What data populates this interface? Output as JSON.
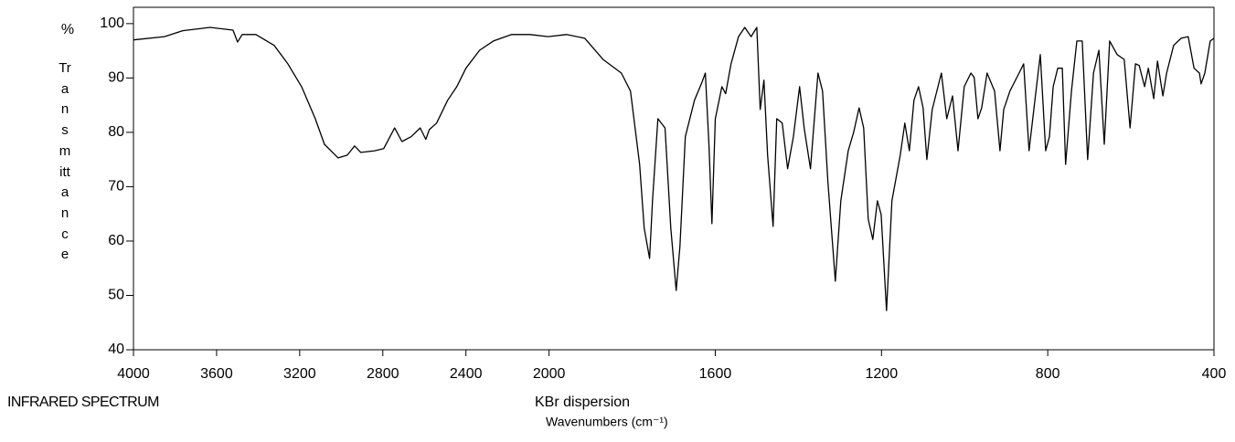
{
  "chart_data": {
    "type": "line",
    "title": "INFRARED SPECTRUM",
    "subtitle": "KBr dispersion",
    "xlabel": "Wavenumbers (cm⁻¹)",
    "ylabel_unit": "%",
    "ylabel": "Transmittance",
    "color": "#000000",
    "xlim": [
      4000,
      400
    ],
    "xticks": [
      4000,
      3600,
      3200,
      2800,
      2400,
      2000,
      1600,
      1200,
      800,
      400
    ],
    "xscale": {
      "break": 2000,
      "expand_below": 2
    },
    "ylim": [
      40,
      103
    ],
    "yticks": [
      40,
      50,
      60,
      70,
      80,
      90,
      100
    ],
    "x": [
      4000,
      3851,
      3763,
      3631,
      3521,
      3499,
      3477,
      3411,
      3323,
      3257,
      3191,
      3125,
      3081,
      3015,
      2971,
      2936,
      2906,
      2840,
      2796,
      2743,
      2708,
      2664,
      2620,
      2593,
      2576,
      2541,
      2488,
      2444,
      2400,
      2334,
      2268,
      2180,
      2092,
      2004,
      1958,
      1914,
      1870,
      1826,
      1804,
      1782,
      1771,
      1758,
      1751,
      1738,
      1721,
      1707,
      1694,
      1685,
      1672,
      1650,
      1632,
      1624,
      1615,
      1608,
      1600,
      1584,
      1575,
      1562,
      1544,
      1529,
      1514,
      1500,
      1492,
      1483,
      1474,
      1461,
      1452,
      1439,
      1426,
      1412,
      1397,
      1386,
      1371,
      1353,
      1342,
      1329,
      1311,
      1298,
      1280,
      1267,
      1254,
      1243,
      1232,
      1221,
      1210,
      1201,
      1188,
      1175,
      1155,
      1144,
      1133,
      1122,
      1111,
      1100,
      1091,
      1078,
      1056,
      1043,
      1029,
      1016,
      1001,
      985,
      977,
      968,
      959,
      946,
      928,
      915,
      906,
      891,
      869,
      858,
      845,
      831,
      818,
      805,
      796,
      787,
      776,
      765,
      757,
      743,
      730,
      717,
      704,
      690,
      677,
      664,
      651,
      633,
      616,
      602,
      589,
      580,
      567,
      558,
      545,
      536,
      523,
      514,
      497,
      479,
      462,
      448,
      435,
      431,
      422,
      409,
      400
    ],
    "values": [
      97.0,
      97.6,
      98.7,
      99.3,
      98.8,
      96.6,
      98.0,
      98.0,
      96.0,
      92.6,
      88.4,
      82.5,
      77.8,
      75.3,
      75.8,
      77.5,
      76.3,
      76.6,
      77.0,
      80.8,
      78.3,
      79.2,
      80.8,
      78.7,
      80.5,
      81.7,
      85.9,
      88.4,
      91.8,
      95.1,
      96.8,
      98.0,
      98.0,
      97.6,
      98.0,
      97.3,
      93.4,
      90.9,
      87.6,
      74.1,
      62.4,
      56.8,
      67.4,
      82.5,
      80.8,
      62.4,
      50.9,
      59.0,
      79.2,
      85.9,
      89.2,
      90.9,
      77.5,
      63.2,
      82.5,
      88.4,
      87.1,
      92.6,
      97.6,
      99.3,
      97.6,
      99.3,
      84.2,
      89.6,
      75.8,
      62.7,
      82.5,
      81.7,
      73.3,
      79.2,
      88.4,
      80.8,
      73.3,
      90.9,
      87.6,
      70.8,
      52.6,
      67.4,
      76.6,
      80.0,
      84.5,
      80.8,
      64.0,
      60.3,
      67.4,
      64.9,
      47.2,
      67.4,
      75.8,
      81.7,
      76.6,
      85.9,
      88.4,
      84.5,
      75.0,
      84.2,
      90.9,
      82.5,
      86.7,
      76.6,
      88.4,
      90.9,
      90.1,
      82.5,
      84.5,
      90.9,
      87.6,
      76.6,
      84.2,
      87.6,
      90.9,
      92.6,
      76.6,
      85.9,
      94.3,
      76.6,
      79.2,
      88.4,
      91.8,
      91.8,
      74.1,
      87.6,
      96.8,
      96.8,
      75.0,
      90.9,
      95.1,
      77.8,
      96.8,
      94.3,
      93.4,
      80.8,
      92.6,
      92.3,
      88.4,
      91.8,
      86.2,
      93.1,
      86.7,
      90.9,
      96.0,
      97.3,
      97.6,
      91.8,
      90.9,
      88.9,
      90.9,
      96.8,
      97.3
    ]
  }
}
